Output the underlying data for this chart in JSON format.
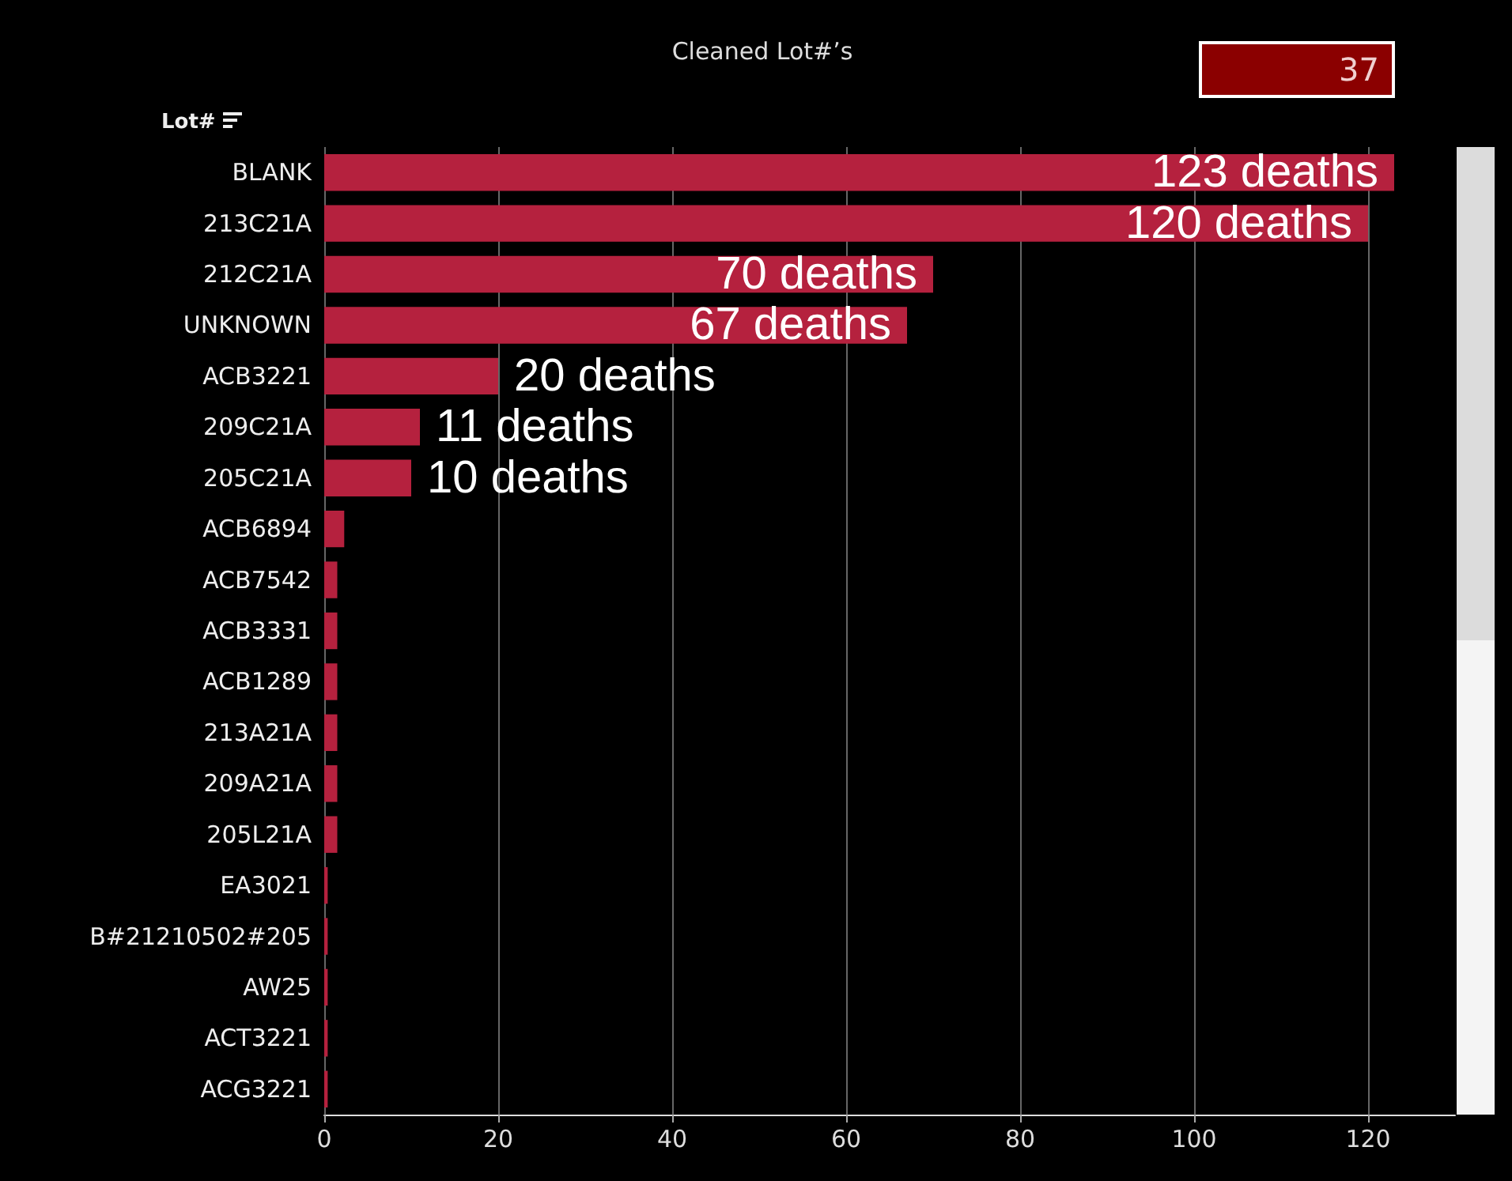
{
  "chart_data": {
    "type": "bar",
    "orientation": "horizontal",
    "title": "Cleaned Lot#’s",
    "ylabel": "Lot#",
    "annotations": [
      "37"
    ],
    "categories": [
      "BLANK",
      "213C21A",
      "212C21A",
      "UNKNOWN",
      "ACB3221",
      "209C21A",
      "205C21A",
      "ACB6894",
      "ACB7542",
      "ACB3331",
      "ACB1289",
      "213A21A",
      "209A21A",
      "205L21A",
      "EA3021",
      "B#21210502#205",
      "AW25",
      "ACT3221",
      "ACG3221"
    ],
    "values": [
      123,
      120,
      70,
      67,
      20,
      11,
      10,
      2.3,
      1.5,
      1.5,
      1.5,
      1.5,
      1.5,
      1.5,
      0.4,
      0.4,
      0.4,
      0.4,
      0.4
    ],
    "value_labels": [
      "123 deaths",
      "120 deaths",
      "70 deaths",
      "67 deaths",
      "20 deaths",
      "11 deaths",
      "10 deaths",
      null,
      null,
      null,
      null,
      null,
      null,
      null,
      null,
      null,
      null,
      null,
      null
    ],
    "color": "#b5213e",
    "xlim": [
      0,
      130
    ],
    "xticks": [
      0,
      20,
      40,
      60,
      80,
      100,
      120
    ],
    "grid": "x"
  }
}
